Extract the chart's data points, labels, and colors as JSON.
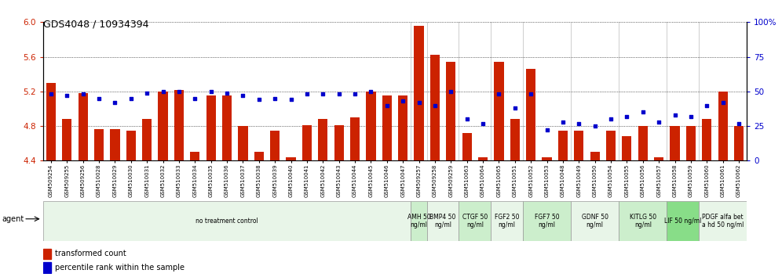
{
  "title": "GDS4048 / 10934394",
  "samples": [
    "GSM509254",
    "GSM509255",
    "GSM509256",
    "GSM510028",
    "GSM510029",
    "GSM510030",
    "GSM510031",
    "GSM510032",
    "GSM510033",
    "GSM510034",
    "GSM510035",
    "GSM510036",
    "GSM510037",
    "GSM510038",
    "GSM510039",
    "GSM510040",
    "GSM510041",
    "GSM510042",
    "GSM510043",
    "GSM510044",
    "GSM510045",
    "GSM510046",
    "GSM510047",
    "GSM509257",
    "GSM509258",
    "GSM509259",
    "GSM510063",
    "GSM510064",
    "GSM510065",
    "GSM510051",
    "GSM510052",
    "GSM510053",
    "GSM510048",
    "GSM510049",
    "GSM510050",
    "GSM510054",
    "GSM510055",
    "GSM510056",
    "GSM510057",
    "GSM510058",
    "GSM510059",
    "GSM510060",
    "GSM510061",
    "GSM510062"
  ],
  "bar_values": [
    5.3,
    4.88,
    5.18,
    4.76,
    4.76,
    4.75,
    4.88,
    5.2,
    5.22,
    4.5,
    5.15,
    5.15,
    4.8,
    4.5,
    4.75,
    4.44,
    4.81,
    4.88,
    4.81,
    4.9,
    5.2,
    5.15,
    5.15,
    5.96,
    5.62,
    5.54,
    4.72,
    4.44,
    5.54,
    4.88,
    5.46,
    4.44,
    4.75,
    4.75,
    4.5,
    4.75,
    4.68,
    4.8,
    4.44,
    4.8,
    4.8,
    4.88,
    5.2,
    4.8
  ],
  "percentile_values": [
    48,
    47,
    48,
    45,
    42,
    45,
    49,
    50,
    50,
    45,
    50,
    49,
    47,
    44,
    45,
    44,
    48,
    48,
    48,
    48,
    50,
    40,
    43,
    42,
    40,
    50,
    30,
    27,
    48,
    38,
    48,
    22,
    28,
    27,
    25,
    30,
    32,
    35,
    28,
    33,
    32,
    40,
    42,
    27
  ],
  "ylim": [
    4.4,
    6.0
  ],
  "ylim_right": [
    0,
    100
  ],
  "yticks_left": [
    4.4,
    4.8,
    5.2,
    5.6,
    6.0
  ],
  "yticks_right": [
    0,
    25,
    50,
    75,
    100
  ],
  "bar_color": "#cc2200",
  "dot_color": "#0000cc",
  "bar_bottom": 4.4,
  "groups": [
    {
      "label": "no treatment control",
      "start": 0,
      "end": 23,
      "color": "#e8f5e8"
    },
    {
      "label": "AMH 50\nng/ml",
      "start": 23,
      "end": 24,
      "color": "#cceecc"
    },
    {
      "label": "BMP4 50\nng/ml",
      "start": 24,
      "end": 26,
      "color": "#e8f5e8"
    },
    {
      "label": "CTGF 50\nng/ml",
      "start": 26,
      "end": 28,
      "color": "#cceecc"
    },
    {
      "label": "FGF2 50\nng/ml",
      "start": 28,
      "end": 30,
      "color": "#e8f5e8"
    },
    {
      "label": "FGF7 50\nng/ml",
      "start": 30,
      "end": 33,
      "color": "#cceecc"
    },
    {
      "label": "GDNF 50\nng/ml",
      "start": 33,
      "end": 36,
      "color": "#e8f5e8"
    },
    {
      "label": "KITLG 50\nng/ml",
      "start": 36,
      "end": 39,
      "color": "#cceecc"
    },
    {
      "label": "LIF 50 ng/ml",
      "start": 39,
      "end": 41,
      "color": "#88dd88"
    },
    {
      "label": "PDGF alfa bet\na hd 50 ng/ml",
      "start": 41,
      "end": 44,
      "color": "#e8f5e8"
    }
  ]
}
